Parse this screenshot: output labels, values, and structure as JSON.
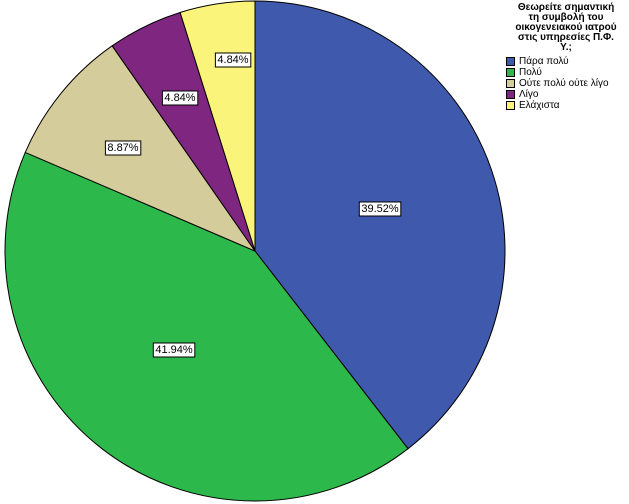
{
  "chart_data": {
    "type": "pie",
    "legend": {
      "title_lines": [
        "Θεωρείτε σημαντική",
        "τη συμβολή του",
        "οικογενειακού ιατρού",
        "στις υπηρεσίες Π.Φ.",
        "Υ.;"
      ],
      "placement": "top-right"
    },
    "slices": [
      {
        "label": "Πάρα πολύ",
        "value": 39.52,
        "display": "39.52%",
        "color": "#3F59AD"
      },
      {
        "label": "Πολύ",
        "value": 41.94,
        "display": "41.94%",
        "color": "#2DB84B"
      },
      {
        "label": "Ούτε πολύ ούτε λίγο",
        "value": 8.87,
        "display": "8.87%",
        "color": "#D4CC9A"
      },
      {
        "label": "Λίγο",
        "value": 4.84,
        "display": "4.84%",
        "color": "#7E2680"
      },
      {
        "label": "Ελάχιστα",
        "value": 4.84,
        "display": "4.84%",
        "color": "#FAF47A"
      }
    ]
  }
}
